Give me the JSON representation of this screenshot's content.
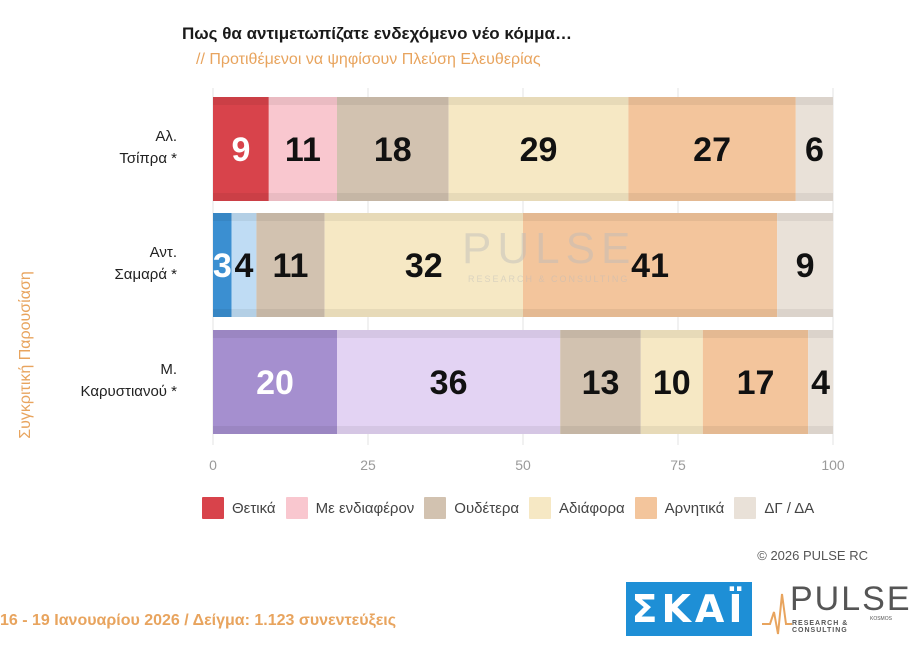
{
  "title": "Πως θα αντιμετωπίζατε ενδεχόμενο νέο κόμμα…",
  "subtitle": "// Προτιθέμενοι να ψηφίσουν Πλεύση Ελευθερίας",
  "side_label": "Συγκριτική Παρουσίαση",
  "copyright": "© 2026 PULSE RC",
  "footer": "16 - 19 Ιανουαρίου 2026  /  Δείγμα:  1.123 συνεντεύξεις",
  "logos": {
    "skai": "ΣΚΑΪ",
    "pulse": "PULSE",
    "pulse_sub": "RESEARCH & CONSULTING",
    "pulse_kosmos": "KOSMOS",
    "watermark": "PULSE",
    "watermark_sub": "RESEARCH & CONSULTING"
  },
  "chart_data": {
    "type": "bar",
    "orientation": "horizontal",
    "stacked": true,
    "categories": [
      "Αλ.\nΤσίπρα *",
      "Αντ.\nΣαμαρά *",
      "Μ.\nΚαρυστιανού *"
    ],
    "series": [
      {
        "name": "Θετικά",
        "values": [
          9,
          3,
          20
        ],
        "color": "#d8434b"
      },
      {
        "name": "Με ενδιαφέρον",
        "values": [
          11,
          4,
          36
        ],
        "color": "#f9c7cf"
      },
      {
        "name": "Ουδέτερα",
        "values": [
          18,
          11,
          13
        ],
        "color": "#d2c2b0"
      },
      {
        "name": "Αδιάφορα",
        "values": [
          29,
          32,
          10
        ],
        "color": "#f6e8c4"
      },
      {
        "name": "Αρνητικά",
        "values": [
          27,
          41,
          17
        ],
        "color": "#f3c59c"
      },
      {
        "name": "ΔΓ / ΔΑ",
        "values": [
          6,
          9,
          4
        ],
        "color": "#e9e1d8"
      }
    ],
    "bar_overrides": {
      "1": {
        "0": "#3b8fd1",
        "1": "#bfdcf4"
      },
      "2": {
        "0": "#a58fcf",
        "1": "#e3d3f3"
      }
    },
    "xlim": [
      0,
      100
    ],
    "xticks": [
      0,
      25,
      50,
      75,
      100
    ],
    "legend_position": "bottom"
  }
}
